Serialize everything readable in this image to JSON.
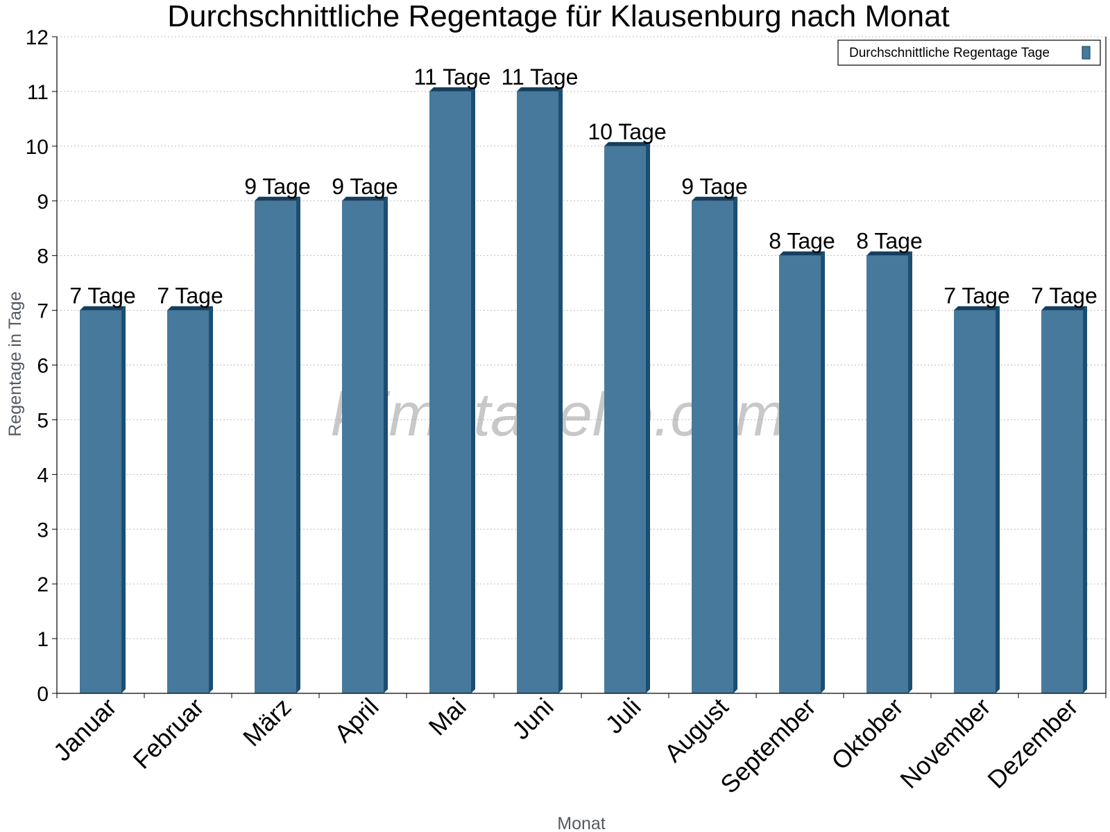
{
  "chart_data": {
    "type": "bar",
    "title": "Durchschnittliche Regentage für Klausenburg nach Monat",
    "xlabel": "Monat",
    "ylabel": "Regentage in Tage",
    "ylim": [
      0,
      12
    ],
    "yticks": [
      "0",
      "1",
      "2",
      "3",
      "4",
      "5",
      "6",
      "7",
      "8",
      "9",
      "10",
      "11",
      "12"
    ],
    "grid": true,
    "legend_position": "top-right",
    "categories": [
      "Januar",
      "Februar",
      "März",
      "April",
      "Mai",
      "Juni",
      "Juli",
      "August",
      "September",
      "Oktober",
      "November",
      "Dezember"
    ],
    "series": [
      {
        "name": "Durchschnittliche Regentage Tage",
        "values": [
          7,
          7,
          9,
          9,
          11,
          11,
          10,
          9,
          8,
          8,
          7,
          7
        ],
        "labels": [
          "7 Tage",
          "7 Tage",
          "9 Tage",
          "9 Tage",
          "11 Tage",
          "11 Tage",
          "10 Tage",
          "9 Tage",
          "8 Tage",
          "8 Tage",
          "7 Tage",
          "7 Tage"
        ]
      }
    ],
    "colors": {
      "bar": "#46799c",
      "bar_side": "#1b4e73",
      "bar_top": "#143e5e"
    }
  },
  "watermark": "klimatabelle.com"
}
